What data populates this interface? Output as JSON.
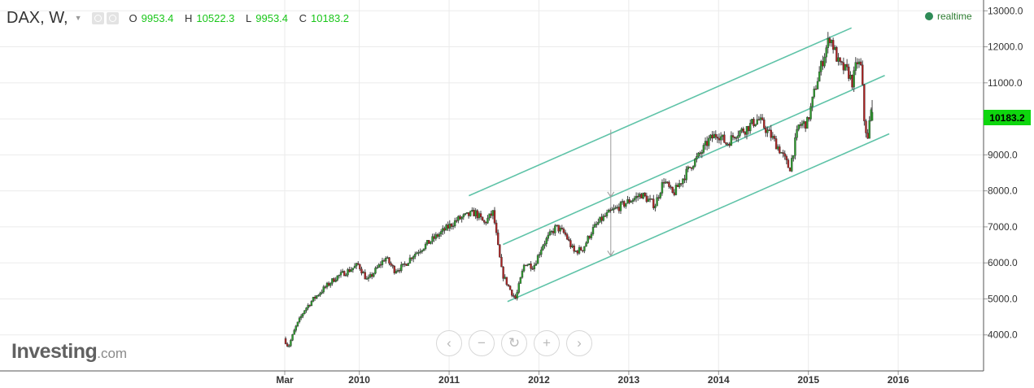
{
  "header": {
    "symbol": "DAX, W,",
    "ohlc": [
      {
        "key": "O",
        "value": "9953.4"
      },
      {
        "key": "H",
        "value": "10522.3"
      },
      {
        "key": "L",
        "value": "9953.4"
      },
      {
        "key": "C",
        "value": "10183.2"
      }
    ]
  },
  "realtime_label": "realtime",
  "logo": {
    "main": "Investing",
    "suffix": ".com"
  },
  "current_price_label": "10183.2",
  "nav_icons": [
    "chevron-left-icon",
    "minus-icon",
    "reset-icon",
    "plus-icon",
    "chevron-right-icon"
  ],
  "colors": {
    "up_candle": "#2ca02c",
    "down_candle": "#b22222",
    "channel_line": "#5fc3a8",
    "price_tag": "#0ed60e",
    "ohlc_value": "#19c619"
  },
  "chart_data": {
    "type": "candlestick",
    "title": "DAX, W,",
    "interval": "weekly",
    "x_tick_labels": [
      "Mar",
      "2010",
      "2011",
      "2012",
      "2013",
      "2014",
      "2015",
      "2016"
    ],
    "x_ticks": [
      2009.17,
      2010.0,
      2011.0,
      2012.0,
      2013.0,
      2014.0,
      2015.0,
      2016.0
    ],
    "xlim": [
      2006.0,
      2016.95
    ],
    "y_tick_labels": [
      "4000.0",
      "5000.0",
      "6000.0",
      "7000.0",
      "8000.0",
      "9000.0",
      "10000.0",
      "11000.0",
      "12000.0",
      "13000.0"
    ],
    "ylim": [
      3000,
      13300
    ],
    "y_axis_position": "right",
    "grid": true,
    "last": {
      "open": 9953.4,
      "high": 10522.3,
      "low": 9953.4,
      "close": 10183.2
    },
    "price_path": [
      [
        2009.17,
        3900
      ],
      [
        2009.22,
        3666
      ],
      [
        2009.3,
        4200
      ],
      [
        2009.4,
        4700
      ],
      [
        2009.5,
        5000
      ],
      [
        2009.6,
        5250
      ],
      [
        2009.75,
        5600
      ],
      [
        2009.9,
        5800
      ],
      [
        2010.0,
        5950
      ],
      [
        2010.1,
        5500
      ],
      [
        2010.3,
        6150
      ],
      [
        2010.4,
        5800
      ],
      [
        2010.5,
        5900
      ],
      [
        2010.6,
        6200
      ],
      [
        2010.8,
        6600
      ],
      [
        2011.0,
        7000
      ],
      [
        2011.1,
        7200
      ],
      [
        2011.3,
        7400
      ],
      [
        2011.4,
        7100
      ],
      [
        2011.5,
        7400
      ],
      [
        2011.55,
        6500
      ],
      [
        2011.6,
        5700
      ],
      [
        2011.7,
        5200
      ],
      [
        2011.75,
        5000
      ],
      [
        2011.85,
        6000
      ],
      [
        2011.95,
        5900
      ],
      [
        2012.05,
        6500
      ],
      [
        2012.2,
        7000
      ],
      [
        2012.3,
        6800
      ],
      [
        2012.4,
        6300
      ],
      [
        2012.5,
        6400
      ],
      [
        2012.6,
        6900
      ],
      [
        2012.7,
        7200
      ],
      [
        2012.8,
        7400
      ],
      [
        2012.9,
        7550
      ],
      [
        2013.0,
        7700
      ],
      [
        2013.15,
        7900
      ],
      [
        2013.3,
        7600
      ],
      [
        2013.4,
        8300
      ],
      [
        2013.5,
        7900
      ],
      [
        2013.6,
        8300
      ],
      [
        2013.7,
        8700
      ],
      [
        2013.8,
        9000
      ],
      [
        2013.9,
        9400
      ],
      [
        2014.0,
        9600
      ],
      [
        2014.1,
        9300
      ],
      [
        2014.2,
        9600
      ],
      [
        2014.3,
        9700
      ],
      [
        2014.45,
        10000
      ],
      [
        2014.6,
        9500
      ],
      [
        2014.7,
        9100
      ],
      [
        2014.8,
        8600
      ],
      [
        2014.9,
        9800
      ],
      [
        2015.0,
        9900
      ],
      [
        2015.1,
        11000
      ],
      [
        2015.2,
        11900
      ],
      [
        2015.25,
        12300
      ],
      [
        2015.35,
        11500
      ],
      [
        2015.45,
        11300
      ],
      [
        2015.5,
        11000
      ],
      [
        2015.55,
        11600
      ],
      [
        2015.6,
        11400
      ],
      [
        2015.63,
        10000
      ],
      [
        2015.67,
        9400
      ],
      [
        2015.7,
        10183
      ]
    ],
    "channel_lines": [
      {
        "name": "",
        "x": [
          2011.22,
          2015.48
        ],
        "y": [
          7865,
          12525
        ]
      },
      {
        "name": "",
        "x": [
          2011.6,
          2015.85
        ],
        "y": [
          6510,
          11205
        ]
      },
      {
        "name": "",
        "x": [
          2011.65,
          2015.9
        ],
        "y": [
          4925,
          9585
        ]
      }
    ],
    "measure_arrow": {
      "x": 2012.8,
      "y_from": 9700,
      "y_to": 6200
    }
  }
}
